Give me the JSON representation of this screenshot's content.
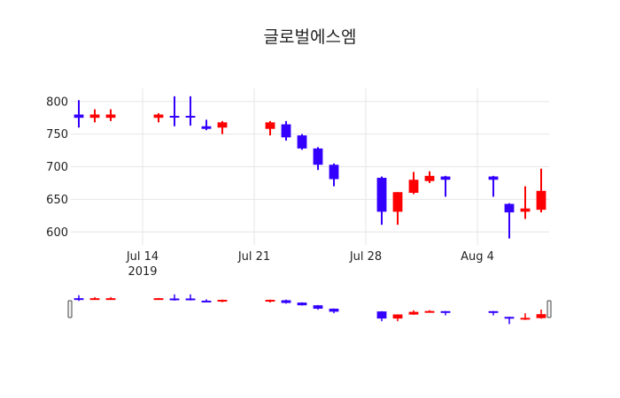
{
  "chart_data": {
    "type": "candlestick",
    "title": "글로벌에스엠",
    "xlabel": "",
    "ylabel": "",
    "x_range": [
      "2019-07-10",
      "2019-08-08"
    ],
    "ylim": [
      580,
      820
    ],
    "y_ticks": [
      600,
      650,
      700,
      750,
      800
    ],
    "x_ticks": [
      {
        "date": "2019-07-14",
        "label": "Jul 14",
        "sublabel": "2019"
      },
      {
        "date": "2019-07-21",
        "label": "Jul 21",
        "sublabel": ""
      },
      {
        "date": "2019-07-28",
        "label": "Jul 28",
        "sublabel": ""
      },
      {
        "date": "2019-08-04",
        "label": "Aug 4",
        "sublabel": ""
      }
    ],
    "grid": true,
    "range_slider": true,
    "increasing_color": "#ff0000",
    "decreasing_color": "#3300ff",
    "candles": [
      {
        "date": "2019-07-10",
        "open": 780,
        "high": 802,
        "low": 760,
        "close": 775
      },
      {
        "date": "2019-07-11",
        "open": 775,
        "high": 788,
        "low": 768,
        "close": 780
      },
      {
        "date": "2019-07-12",
        "open": 775,
        "high": 788,
        "low": 770,
        "close": 780
      },
      {
        "date": "2019-07-15",
        "open": 775,
        "high": 782,
        "low": 768,
        "close": 780
      },
      {
        "date": "2019-07-16",
        "open": 778,
        "high": 808,
        "low": 762,
        "close": 776
      },
      {
        "date": "2019-07-17",
        "open": 778,
        "high": 808,
        "low": 763,
        "close": 776
      },
      {
        "date": "2019-07-18",
        "open": 762,
        "high": 772,
        "low": 756,
        "close": 758
      },
      {
        "date": "2019-07-19",
        "open": 760,
        "high": 770,
        "low": 750,
        "close": 768
      },
      {
        "date": "2019-07-22",
        "open": 758,
        "high": 770,
        "low": 748,
        "close": 768
      },
      {
        "date": "2019-07-23",
        "open": 765,
        "high": 770,
        "low": 740,
        "close": 745
      },
      {
        "date": "2019-07-24",
        "open": 748,
        "high": 750,
        "low": 726,
        "close": 728
      },
      {
        "date": "2019-07-25",
        "open": 728,
        "high": 730,
        "low": 695,
        "close": 703
      },
      {
        "date": "2019-07-26",
        "open": 703,
        "high": 705,
        "low": 670,
        "close": 681
      },
      {
        "date": "2019-07-29",
        "open": 683,
        "high": 685,
        "low": 611,
        "close": 631
      },
      {
        "date": "2019-07-30",
        "open": 631,
        "high": 661,
        "low": 611,
        "close": 661
      },
      {
        "date": "2019-07-31",
        "open": 660,
        "high": 692,
        "low": 658,
        "close": 680
      },
      {
        "date": "2019-08-01",
        "open": 678,
        "high": 693,
        "low": 675,
        "close": 686
      },
      {
        "date": "2019-08-02",
        "open": 685,
        "high": 686,
        "low": 654,
        "close": 680
      },
      {
        "date": "2019-08-05",
        "open": 685,
        "high": 686,
        "low": 654,
        "close": 680
      },
      {
        "date": "2019-08-06",
        "open": 643,
        "high": 644,
        "low": 590,
        "close": 630
      },
      {
        "date": "2019-08-07",
        "open": 631,
        "high": 670,
        "low": 620,
        "close": 636
      },
      {
        "date": "2019-08-08",
        "open": 634,
        "high": 697,
        "low": 630,
        "close": 663
      }
    ]
  }
}
